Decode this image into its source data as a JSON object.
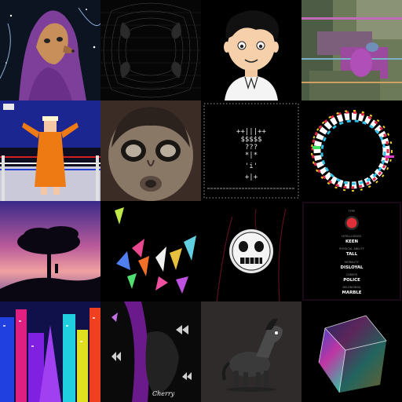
{
  "tiles": [
    {
      "subject": "cartoon meerkat in purple hooded robe in space",
      "icon": "meerkat-icon"
    },
    {
      "subject": "dark symmetric wireframe pattern",
      "icon": "wireframe-icon"
    },
    {
      "subject": "cartoon boy with black hair",
      "icon": "boy-icon"
    },
    {
      "subject": "glitched garden painting",
      "icon": "glitch-painting-icon"
    },
    {
      "subject": "pixel art wrestler in orange robe in ring",
      "icon": "wrestler-icon"
    },
    {
      "subject": "distorted sculpted face",
      "icon": "face-icon"
    },
    {
      "subject": "ascii art figure",
      "icon": "ascii-icon"
    },
    {
      "subject": "rainbow glitch circle silhouette",
      "icon": "glitch-circle-icon"
    },
    {
      "subject": "lone tree silhouette at sunset",
      "icon": "tree-icon"
    },
    {
      "subject": "colored triangle shards",
      "icon": "shards-icon"
    },
    {
      "subject": "skull medallion on dark background",
      "icon": "skull-icon"
    },
    {
      "subject": "character trait card",
      "icon": "stats-card-icon"
    },
    {
      "subject": "neon city skyline",
      "icon": "city-icon"
    },
    {
      "subject": "purple figure with butterflies",
      "icon": "butterfly-icon"
    },
    {
      "subject": "cartoon zebra horse",
      "icon": "horse-icon"
    },
    {
      "subject": "iridescent glass cube",
      "icon": "cube-icon"
    }
  ],
  "ascii_art": {
    "lines": [
      "++|||++",
      "$$$$$",
      "???",
      "*|*",
      "'i'",
      "+|+"
    ]
  },
  "stats_card": {
    "rows": [
      {
        "label": "TYPE",
        "value": ""
      },
      {
        "label": "INTELLIGENCE",
        "value": "KEEN"
      },
      {
        "label": "PHYSICAL ABILITY",
        "value": "TALL"
      },
      {
        "label": "MORALITY",
        "value": "DISLOYAL"
      },
      {
        "label": "CAREER",
        "value": "POLICE"
      },
      {
        "label": "BELONGINGS",
        "value": "MARBLE"
      }
    ]
  },
  "signature": {
    "text": "Cherry"
  },
  "colors": {
    "background": "#000000",
    "accent_red": "#e0303a",
    "card_border": "#3a1030"
  }
}
